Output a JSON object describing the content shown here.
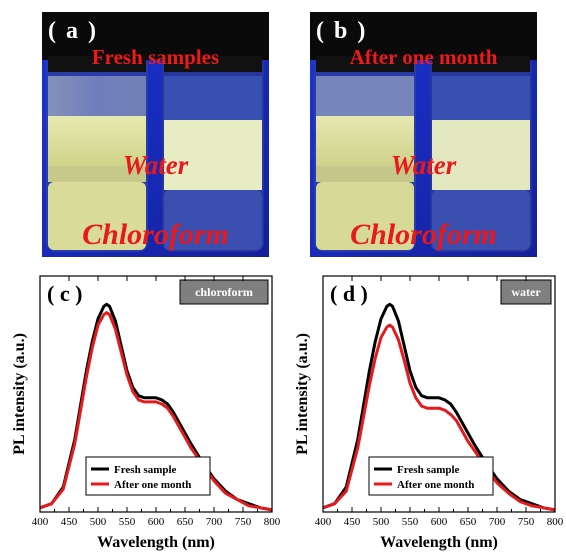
{
  "photos": [
    {
      "panel": "( a )",
      "title": "Fresh samples",
      "layer_top": "Water",
      "layer_bottom": "Chloroform"
    },
    {
      "panel": "( b )",
      "title": "After one month",
      "layer_top": "Water",
      "layer_bottom": "Chloroform"
    }
  ],
  "colors": {
    "fresh": "#000000",
    "month": "#e41a1c",
    "photo_background": "#1a2ec8",
    "tag_fill": "#7f7f7f"
  },
  "chart_data": [
    {
      "type": "line",
      "panel": "( c )",
      "tag": "chloroform",
      "xlabel": "Wavelength (nm)",
      "ylabel": "PL  intensity (a.u.)",
      "xlim": [
        400,
        800
      ],
      "ylim": [
        0,
        1
      ],
      "xticks": [
        400,
        450,
        500,
        550,
        600,
        650,
        700,
        750,
        800
      ],
      "legend_position": "bottom-center",
      "series": [
        {
          "name": "Fresh sample",
          "color": "#000000",
          "x": [
            400,
            420,
            440,
            460,
            480,
            490,
            500,
            510,
            515,
            520,
            530,
            540,
            550,
            560,
            570,
            580,
            590,
            600,
            610,
            620,
            630,
            640,
            650,
            660,
            680,
            700,
            720,
            740,
            760,
            780,
            800
          ],
          "y": [
            0.02,
            0.04,
            0.12,
            0.35,
            0.68,
            0.82,
            0.93,
            0.99,
            1.0,
            0.99,
            0.92,
            0.8,
            0.68,
            0.6,
            0.56,
            0.55,
            0.55,
            0.55,
            0.54,
            0.52,
            0.48,
            0.43,
            0.38,
            0.33,
            0.24,
            0.16,
            0.1,
            0.06,
            0.04,
            0.02,
            0.01
          ]
        },
        {
          "name": "After one month",
          "color": "#e41a1c",
          "x": [
            400,
            420,
            440,
            460,
            480,
            490,
            500,
            510,
            515,
            520,
            530,
            540,
            550,
            560,
            570,
            580,
            590,
            600,
            610,
            620,
            630,
            640,
            650,
            660,
            680,
            700,
            720,
            740,
            760,
            780,
            800
          ],
          "y": [
            0.02,
            0.04,
            0.11,
            0.33,
            0.65,
            0.79,
            0.9,
            0.95,
            0.96,
            0.95,
            0.88,
            0.77,
            0.66,
            0.58,
            0.54,
            0.53,
            0.53,
            0.53,
            0.52,
            0.5,
            0.46,
            0.41,
            0.36,
            0.31,
            0.23,
            0.15,
            0.09,
            0.06,
            0.03,
            0.02,
            0.01
          ]
        }
      ]
    },
    {
      "type": "line",
      "panel": "( d )",
      "tag": "water",
      "xlabel": "Wavelength (nm)",
      "ylabel": "PL  intensity (a.u.)",
      "xlim": [
        400,
        800
      ],
      "ylim": [
        0,
        1
      ],
      "xticks": [
        400,
        450,
        500,
        550,
        600,
        650,
        700,
        750,
        800
      ],
      "legend_position": "bottom-center",
      "series": [
        {
          "name": "Fresh sample",
          "color": "#000000",
          "x": [
            400,
            420,
            440,
            460,
            480,
            490,
            500,
            510,
            515,
            520,
            530,
            540,
            550,
            560,
            570,
            580,
            590,
            600,
            610,
            620,
            630,
            640,
            650,
            660,
            680,
            700,
            720,
            740,
            760,
            780,
            800
          ],
          "y": [
            0.02,
            0.04,
            0.12,
            0.35,
            0.68,
            0.82,
            0.93,
            0.99,
            1.0,
            0.99,
            0.92,
            0.8,
            0.68,
            0.6,
            0.56,
            0.55,
            0.55,
            0.55,
            0.54,
            0.52,
            0.48,
            0.43,
            0.38,
            0.33,
            0.24,
            0.16,
            0.1,
            0.06,
            0.04,
            0.02,
            0.01
          ]
        },
        {
          "name": "After one month",
          "color": "#e41a1c",
          "x": [
            400,
            420,
            440,
            460,
            480,
            490,
            500,
            510,
            515,
            520,
            530,
            540,
            550,
            560,
            570,
            580,
            590,
            600,
            610,
            620,
            630,
            640,
            650,
            660,
            680,
            700,
            720,
            740,
            760,
            780,
            800
          ],
          "y": [
            0.02,
            0.04,
            0.1,
            0.31,
            0.61,
            0.74,
            0.84,
            0.89,
            0.9,
            0.89,
            0.83,
            0.73,
            0.62,
            0.55,
            0.51,
            0.5,
            0.5,
            0.5,
            0.49,
            0.47,
            0.44,
            0.39,
            0.34,
            0.3,
            0.22,
            0.14,
            0.09,
            0.05,
            0.03,
            0.02,
            0.01
          ]
        }
      ]
    }
  ]
}
